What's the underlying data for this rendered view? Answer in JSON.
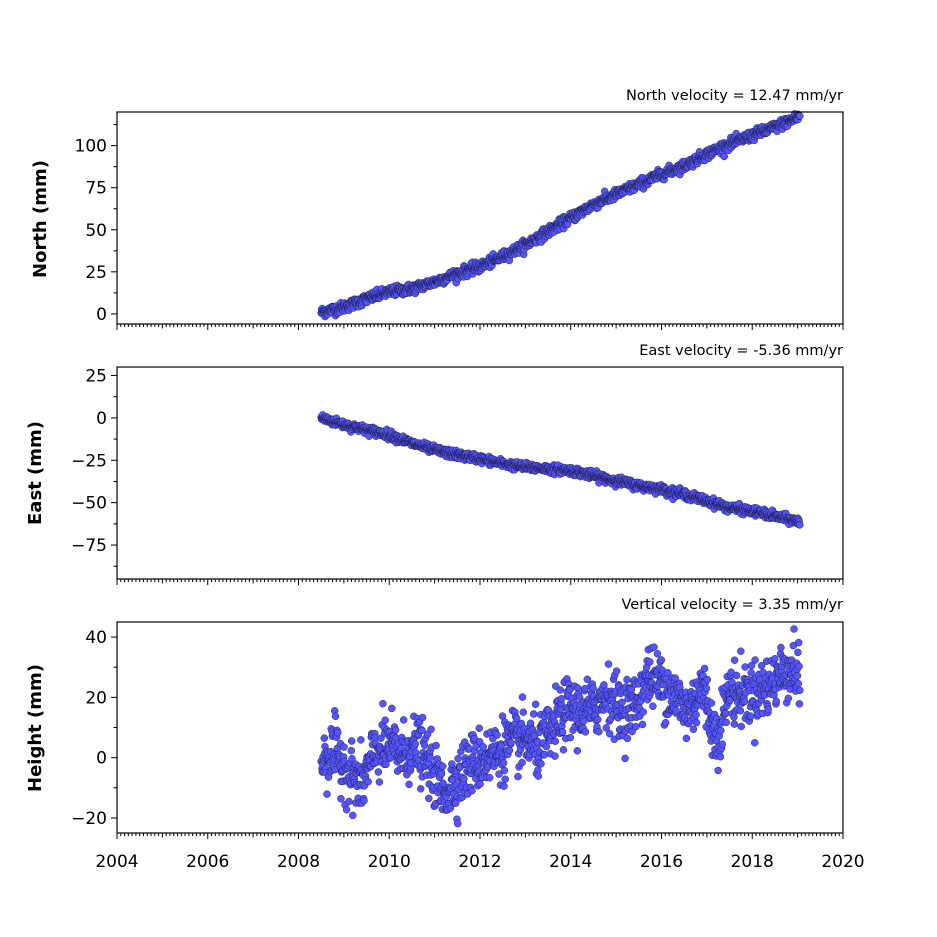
{
  "chart_data": [
    {
      "type": "scatter",
      "title": "North velocity = 12.47 mm/yr",
      "ylabel": "North (mm)",
      "xlim": [
        2004,
        2020
      ],
      "ylim": [
        -6,
        120
      ],
      "yticks": [
        0,
        25,
        50,
        75,
        100
      ],
      "xticks": [
        2004,
        2006,
        2008,
        2010,
        2012,
        2014,
        2016,
        2018,
        2020
      ],
      "x_tick_labels_shown": false,
      "series": [
        {
          "x": [
            2008.5,
            2009.0,
            2009.5,
            2010.0,
            2010.5,
            2011.0,
            2011.5,
            2012.0,
            2012.5,
            2013.0,
            2013.5,
            2014.0,
            2014.5,
            2015.0,
            2015.5,
            2016.0,
            2016.5,
            2017.0,
            2017.5,
            2018.0,
            2018.5,
            2019.0,
            2019.05
          ],
          "y": [
            1,
            4,
            9,
            13,
            15,
            19,
            24,
            28,
            34,
            41,
            49,
            57,
            65,
            71,
            77,
            83,
            88,
            95,
            101,
            106,
            111,
            117,
            118
          ],
          "scatter": 1.5
        }
      ]
    },
    {
      "type": "scatter",
      "title": "East velocity = -5.36 mm/yr",
      "ylabel": "East (mm)",
      "xlim": [
        2004,
        2020
      ],
      "ylim": [
        -95,
        30
      ],
      "yticks": [
        -75,
        -50,
        -25,
        0,
        25
      ],
      "xticks": [
        2004,
        2006,
        2008,
        2010,
        2012,
        2014,
        2016,
        2018,
        2020
      ],
      "x_tick_labels_shown": false,
      "series": [
        {
          "x": [
            2008.5,
            2009.0,
            2009.5,
            2010.0,
            2010.5,
            2011.0,
            2011.5,
            2012.0,
            2012.5,
            2013.0,
            2013.5,
            2014.0,
            2014.5,
            2015.0,
            2015.5,
            2016.0,
            2016.5,
            2017.0,
            2017.5,
            2018.0,
            2018.5,
            2019.0,
            2019.05
          ],
          "y": [
            0,
            -4,
            -7,
            -10,
            -15,
            -19,
            -22,
            -24,
            -27,
            -29,
            -30,
            -31,
            -34,
            -37,
            -40,
            -42,
            -45,
            -49,
            -53,
            -55,
            -58,
            -61,
            -62
          ],
          "scatter": 1.2
        }
      ]
    },
    {
      "type": "scatter",
      "title": "Vertical velocity = 3.35 mm/yr",
      "ylabel": "Height (mm)",
      "xlim": [
        2004,
        2020
      ],
      "ylim": [
        -25,
        45
      ],
      "yticks": [
        -20,
        0,
        20,
        40
      ],
      "xticks": [
        2004,
        2006,
        2008,
        2010,
        2012,
        2014,
        2016,
        2018,
        2020
      ],
      "x_tick_labels_shown": true,
      "series": [
        {
          "x": [
            2008.5,
            2008.8,
            2009.1,
            2009.4,
            2009.7,
            2010.0,
            2010.3,
            2010.6,
            2010.9,
            2011.2,
            2011.5,
            2011.8,
            2012.1,
            2012.4,
            2012.7,
            2013.0,
            2013.3,
            2013.6,
            2013.9,
            2014.2,
            2014.5,
            2014.8,
            2015.1,
            2015.4,
            2015.7,
            2016.0,
            2016.3,
            2016.6,
            2016.9,
            2017.2,
            2017.5,
            2017.8,
            2018.1,
            2018.4,
            2018.7,
            2019.0,
            2019.05
          ],
          "y": [
            -1,
            2,
            -5,
            -9,
            2,
            4,
            1,
            4,
            -3,
            -12,
            -7,
            -2,
            0,
            2,
            5,
            6,
            3,
            9,
            16,
            15,
            16,
            21,
            16,
            17,
            27,
            25,
            20,
            15,
            24,
            6,
            22,
            21,
            22,
            24,
            29,
            29,
            23
          ],
          "scatter": 5
        }
      ]
    }
  ]
}
